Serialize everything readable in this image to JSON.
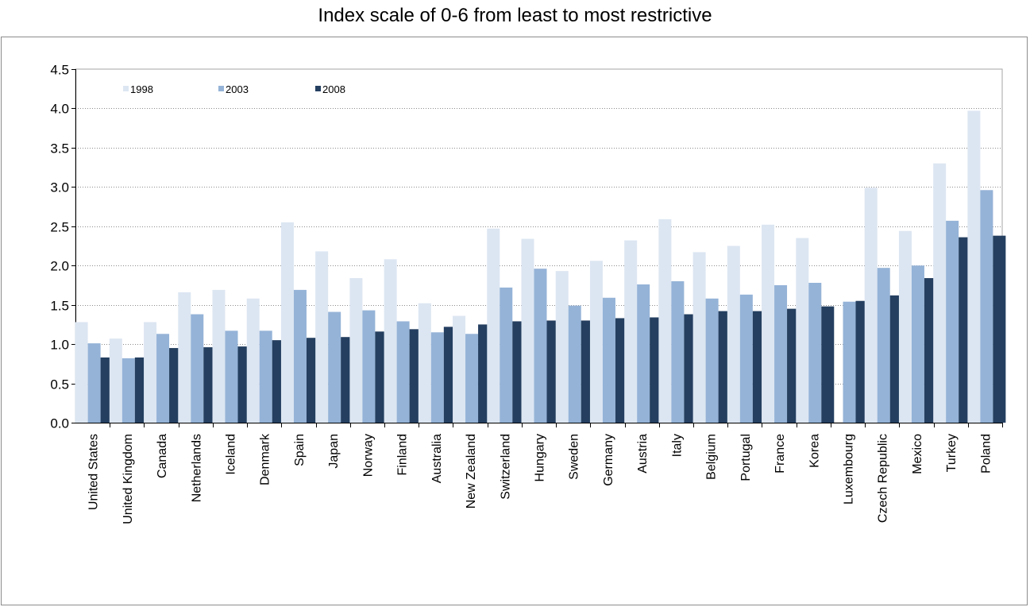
{
  "chart_data": {
    "type": "bar",
    "title": "Index scale of 0-6 from least to most restrictive",
    "xlabel": "",
    "ylabel": "",
    "ylim": [
      0,
      4.5
    ],
    "yticks": [
      "0.0",
      "0.5",
      "1.0",
      "1.5",
      "2.0",
      "2.5",
      "3.0",
      "3.5",
      "4.0",
      "4.5"
    ],
    "grid": true,
    "legend_position": "top-left",
    "categories": [
      "United States",
      "United Kingdom",
      "Canada",
      "Netherlands",
      "Iceland",
      "Denmark",
      "Spain",
      "Japan",
      "Norway",
      "Finland",
      "Australia",
      "New Zealand",
      "Switzerland",
      "Hungary",
      "Sweden",
      "Germany",
      "Austria",
      "Italy",
      "Belgium",
      "Portugal",
      "France",
      "Korea",
      "Luxembourg",
      "Czech Republic",
      "Mexico",
      "Turkey",
      "Poland"
    ],
    "series": [
      {
        "name": "1998",
        "color": "#dce6f2",
        "values": [
          1.28,
          1.07,
          1.28,
          1.66,
          1.69,
          1.58,
          2.55,
          2.18,
          1.84,
          2.08,
          1.52,
          1.36,
          2.47,
          2.34,
          1.93,
          2.06,
          2.32,
          2.59,
          2.17,
          2.25,
          2.52,
          2.35,
          null,
          2.99,
          2.44,
          3.3,
          3.97
        ]
      },
      {
        "name": "2003",
        "color": "#95b3d7",
        "values": [
          1.01,
          0.82,
          1.13,
          1.38,
          1.17,
          1.17,
          1.69,
          1.41,
          1.43,
          1.29,
          1.15,
          1.13,
          1.72,
          1.96,
          1.49,
          1.59,
          1.76,
          1.8,
          1.58,
          1.63,
          1.75,
          1.78,
          1.54,
          1.97,
          2.0,
          2.57,
          2.96
        ]
      },
      {
        "name": "2008",
        "color": "#243f60",
        "values": [
          0.83,
          0.83,
          0.95,
          0.96,
          0.97,
          1.05,
          1.08,
          1.09,
          1.16,
          1.19,
          1.22,
          1.25,
          1.29,
          1.3,
          1.3,
          1.33,
          1.34,
          1.38,
          1.42,
          1.42,
          1.45,
          1.48,
          1.55,
          1.62,
          1.84,
          2.36,
          2.38
        ]
      }
    ]
  }
}
